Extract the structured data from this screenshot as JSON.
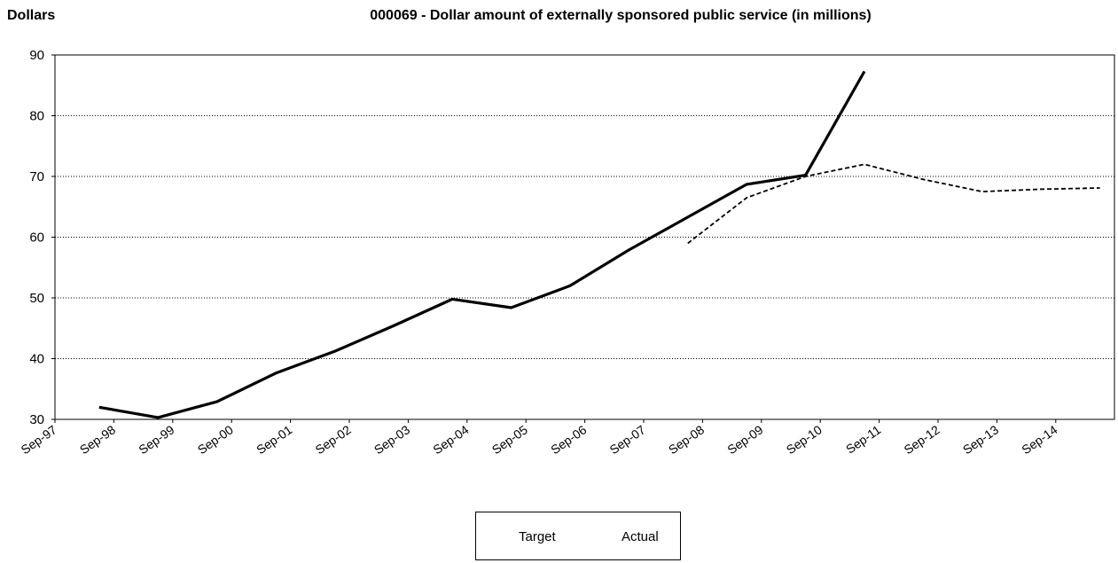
{
  "chart_data": {
    "type": "line",
    "title": "000069 - Dollar amount of externally sponsored public service (in millions)",
    "ylabel": "Dollars",
    "xlabel": "",
    "categories": [
      "Sep-97",
      "Sep-98",
      "Sep-99",
      "Sep-00",
      "Sep-01",
      "Sep-02",
      "Sep-03",
      "Sep-04",
      "Sep-05",
      "Sep-06",
      "Sep-07",
      "Sep-08",
      "Sep-09",
      "Sep-10",
      "Sep-11",
      "Sep-12",
      "Sep-13",
      "Sep-14"
    ],
    "ylim": [
      30,
      90
    ],
    "yticks": [
      30,
      40,
      50,
      60,
      70,
      80,
      90
    ],
    "grid": "horizontal-dotted",
    "legend_position": "bottom",
    "series": [
      {
        "name": "Target",
        "style": "dashed",
        "points": [
          {
            "x": 10.75,
            "y": 59
          },
          {
            "x": 11.75,
            "y": 66.5
          },
          {
            "x": 12.75,
            "y": 70
          },
          {
            "x": 13.75,
            "y": 72
          },
          {
            "x": 14.75,
            "y": 69.5
          },
          {
            "x": 15.75,
            "y": 67.5
          },
          {
            "x": 16.75,
            "y": 67.9
          },
          {
            "x": 17.75,
            "y": 68.1
          }
        ]
      },
      {
        "name": "Actual",
        "style": "solid",
        "points": [
          {
            "x": 0.75,
            "y": 32
          },
          {
            "x": 1.75,
            "y": 30.3
          },
          {
            "x": 2.75,
            "y": 32.9
          },
          {
            "x": 3.75,
            "y": 37.6
          },
          {
            "x": 4.75,
            "y": 41.2
          },
          {
            "x": 5.75,
            "y": 45.4
          },
          {
            "x": 6.75,
            "y": 49.8
          },
          {
            "x": 7.75,
            "y": 48.4
          },
          {
            "x": 8.75,
            "y": 52
          },
          {
            "x": 9.75,
            "y": 57.9
          },
          {
            "x": 10.75,
            "y": 63.3
          },
          {
            "x": 11.75,
            "y": 68.7
          },
          {
            "x": 12.75,
            "y": 70.2
          },
          {
            "x": 13.75,
            "y": 87.3
          }
        ]
      }
    ]
  }
}
